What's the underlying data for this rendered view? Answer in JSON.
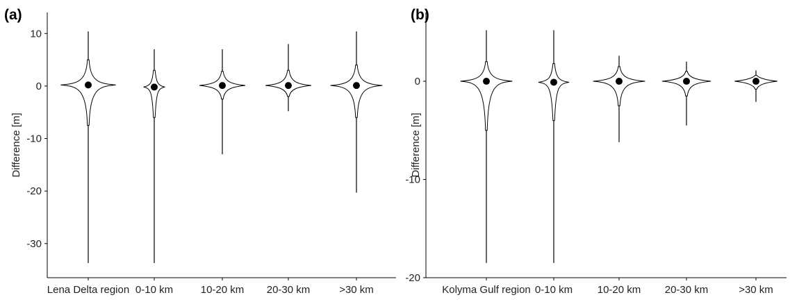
{
  "chart_data": [
    {
      "panel_label": "(a)",
      "type": "violin",
      "xlabel": "",
      "ylabel": "Difference [m]",
      "ylim": [
        -36.5,
        14
      ],
      "yticks": [
        10,
        0,
        -10,
        -20,
        -30
      ],
      "ytick_labels": [
        "10",
        "0",
        "-10",
        "-20",
        "-30"
      ],
      "grid": false,
      "categories": [
        "Lena Delta region",
        "0-10 km",
        "10-20 km",
        "20-30 km",
        ">30 km"
      ],
      "series": [
        {
          "category": "Lena Delta region",
          "median": 0.2,
          "min": -33.7,
          "max": 10.4,
          "core_low": -7.5,
          "core_high": 5.0,
          "width": 0.9
        },
        {
          "category": "0-10 km",
          "median": -0.2,
          "min": -33.7,
          "max": 7.0,
          "core_low": -6.0,
          "core_high": 3.0,
          "width": 0.35
        },
        {
          "category": "10-20 km",
          "median": 0.1,
          "min": -13.0,
          "max": 7.0,
          "core_low": -2.5,
          "core_high": 2.8,
          "width": 0.75
        },
        {
          "category": "20-30 km",
          "median": 0.1,
          "min": -4.8,
          "max": 8.0,
          "core_low": -2.0,
          "core_high": 3.0,
          "width": 0.75
        },
        {
          "category": ">30 km",
          "median": 0.1,
          "min": -20.3,
          "max": 10.4,
          "core_low": -6.0,
          "core_high": 4.0,
          "width": 0.85
        }
      ]
    },
    {
      "panel_label": "(b)",
      "type": "violin",
      "xlabel": "",
      "ylabel": "Difference [m]",
      "ylim": [
        -20,
        7
      ],
      "yticks": [
        0,
        -10,
        -20
      ],
      "ytick_labels": [
        "0",
        "-10",
        "-20"
      ],
      "grid": false,
      "categories": [
        "Kolyma Gulf region",
        "0-10 km",
        "10-20 km",
        "20-30 km",
        ">30 km"
      ],
      "series": [
        {
          "category": "Kolyma Gulf region",
          "median": 0.0,
          "min": -18.5,
          "max": 5.2,
          "core_low": -5.0,
          "core_high": 2.0,
          "width": 0.85
        },
        {
          "category": "0-10 km",
          "median": -0.1,
          "min": -18.5,
          "max": 5.2,
          "core_low": -4.0,
          "core_high": 1.8,
          "width": 0.5
        },
        {
          "category": "10-20 km",
          "median": 0.0,
          "min": -6.2,
          "max": 2.6,
          "core_low": -2.5,
          "core_high": 1.5,
          "width": 0.85
        },
        {
          "category": "20-30 km",
          "median": 0.0,
          "min": -4.5,
          "max": 2.0,
          "core_low": -1.5,
          "core_high": 1.0,
          "width": 0.8
        },
        {
          "category": ">30 km",
          "median": 0.0,
          "min": -2.1,
          "max": 1.1,
          "core_low": -0.8,
          "core_high": 0.6,
          "width": 0.7
        }
      ]
    }
  ]
}
